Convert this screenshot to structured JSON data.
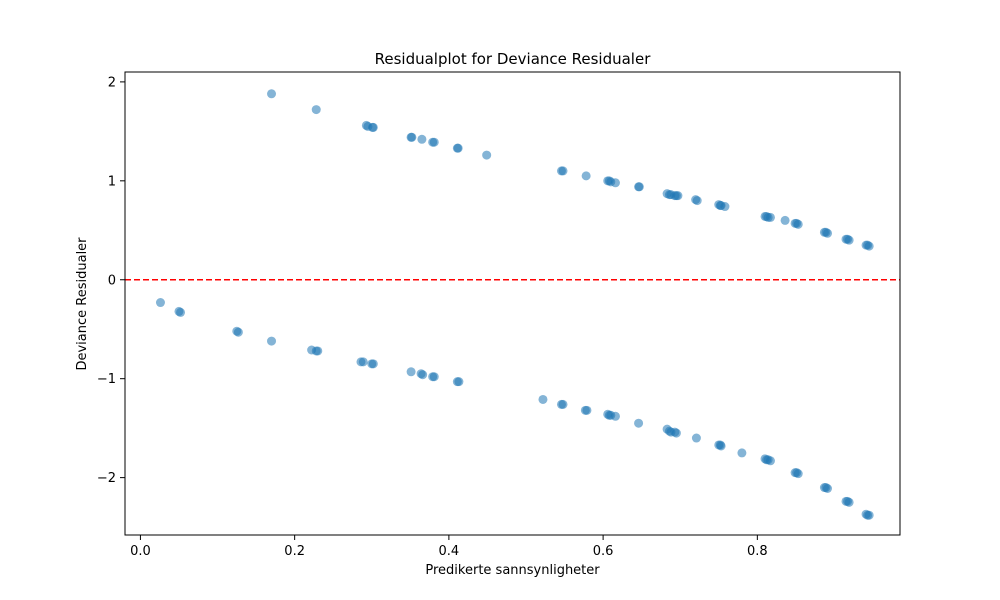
{
  "chart_data": {
    "type": "scatter",
    "title": "Residualplot for Deviance Residualer",
    "xlabel": "Predikerte sannsynligheter",
    "ylabel": "Deviance Residualer",
    "xlim": [
      -0.02,
      0.985
    ],
    "ylim": [
      -2.58,
      2.1
    ],
    "xticks": [
      0.0,
      0.2,
      0.4,
      0.6,
      0.8
    ],
    "xtick_labels": [
      "0.0",
      "0.2",
      "0.4",
      "0.6",
      "0.8"
    ],
    "yticks": [
      -2,
      -1,
      0,
      1,
      2
    ],
    "ytick_labels": [
      "−2",
      "−1",
      "0",
      "1",
      "2"
    ],
    "grid": false,
    "reference_line": {
      "y": 0,
      "style": "dashed",
      "color": "#ff0000"
    },
    "point_color": "#1f77b4",
    "point_alpha": 0.55,
    "series": [
      {
        "points": [
          [
            0.17,
            1.88
          ],
          [
            0.228,
            1.72
          ],
          [
            0.293,
            1.56
          ],
          [
            0.295,
            1.55
          ],
          [
            0.301,
            1.54
          ],
          [
            0.302,
            1.54
          ],
          [
            0.351,
            1.44
          ],
          [
            0.352,
            1.44
          ],
          [
            0.365,
            1.42
          ],
          [
            0.379,
            1.39
          ],
          [
            0.381,
            1.39
          ],
          [
            0.411,
            1.33
          ],
          [
            0.412,
            1.33
          ],
          [
            0.449,
            1.26
          ],
          [
            0.546,
            1.1
          ],
          [
            0.548,
            1.1
          ],
          [
            0.578,
            1.05
          ],
          [
            0.606,
            1.0
          ],
          [
            0.608,
            1.0
          ],
          [
            0.61,
            0.99
          ],
          [
            0.616,
            0.98
          ],
          [
            0.646,
            0.94
          ],
          [
            0.647,
            0.94
          ],
          [
            0.683,
            0.87
          ],
          [
            0.686,
            0.86
          ],
          [
            0.688,
            0.86
          ],
          [
            0.693,
            0.85
          ],
          [
            0.695,
            0.85
          ],
          [
            0.697,
            0.85
          ],
          [
            0.72,
            0.81
          ],
          [
            0.722,
            0.8
          ],
          [
            0.75,
            0.76
          ],
          [
            0.752,
            0.75
          ],
          [
            0.753,
            0.75
          ],
          [
            0.758,
            0.74
          ],
          [
            0.81,
            0.64
          ],
          [
            0.812,
            0.64
          ],
          [
            0.814,
            0.63
          ],
          [
            0.817,
            0.63
          ],
          [
            0.836,
            0.6
          ],
          [
            0.849,
            0.57
          ],
          [
            0.851,
            0.57
          ],
          [
            0.853,
            0.56
          ],
          [
            0.887,
            0.48
          ],
          [
            0.889,
            0.48
          ],
          [
            0.891,
            0.47
          ],
          [
            0.915,
            0.41
          ],
          [
            0.917,
            0.41
          ],
          [
            0.919,
            0.4
          ],
          [
            0.941,
            0.35
          ],
          [
            0.943,
            0.35
          ],
          [
            0.945,
            0.34
          ],
          [
            0.026,
            -0.23
          ],
          [
            0.05,
            -0.32
          ],
          [
            0.052,
            -0.33
          ],
          [
            0.125,
            -0.52
          ],
          [
            0.127,
            -0.53
          ],
          [
            0.17,
            -0.62
          ],
          [
            0.222,
            -0.71
          ],
          [
            0.228,
            -0.72
          ],
          [
            0.23,
            -0.72
          ],
          [
            0.286,
            -0.83
          ],
          [
            0.289,
            -0.83
          ],
          [
            0.3,
            -0.85
          ],
          [
            0.302,
            -0.85
          ],
          [
            0.351,
            -0.93
          ],
          [
            0.364,
            -0.95
          ],
          [
            0.366,
            -0.96
          ],
          [
            0.379,
            -0.98
          ],
          [
            0.381,
            -0.98
          ],
          [
            0.411,
            -1.03
          ],
          [
            0.413,
            -1.03
          ],
          [
            0.522,
            -1.21
          ],
          [
            0.546,
            -1.26
          ],
          [
            0.548,
            -1.26
          ],
          [
            0.577,
            -1.32
          ],
          [
            0.579,
            -1.32
          ],
          [
            0.606,
            -1.36
          ],
          [
            0.608,
            -1.37
          ],
          [
            0.61,
            -1.37
          ],
          [
            0.616,
            -1.38
          ],
          [
            0.646,
            -1.45
          ],
          [
            0.683,
            -1.51
          ],
          [
            0.686,
            -1.53
          ],
          [
            0.688,
            -1.54
          ],
          [
            0.693,
            -1.54
          ],
          [
            0.695,
            -1.55
          ],
          [
            0.721,
            -1.6
          ],
          [
            0.75,
            -1.67
          ],
          [
            0.752,
            -1.67
          ],
          [
            0.753,
            -1.68
          ],
          [
            0.78,
            -1.75
          ],
          [
            0.81,
            -1.81
          ],
          [
            0.812,
            -1.82
          ],
          [
            0.814,
            -1.82
          ],
          [
            0.817,
            -1.83
          ],
          [
            0.849,
            -1.95
          ],
          [
            0.851,
            -1.95
          ],
          [
            0.853,
            -1.96
          ],
          [
            0.887,
            -2.1
          ],
          [
            0.889,
            -2.1
          ],
          [
            0.891,
            -2.11
          ],
          [
            0.915,
            -2.24
          ],
          [
            0.917,
            -2.24
          ],
          [
            0.919,
            -2.25
          ],
          [
            0.941,
            -2.37
          ],
          [
            0.943,
            -2.38
          ],
          [
            0.945,
            -2.38
          ]
        ]
      }
    ]
  }
}
